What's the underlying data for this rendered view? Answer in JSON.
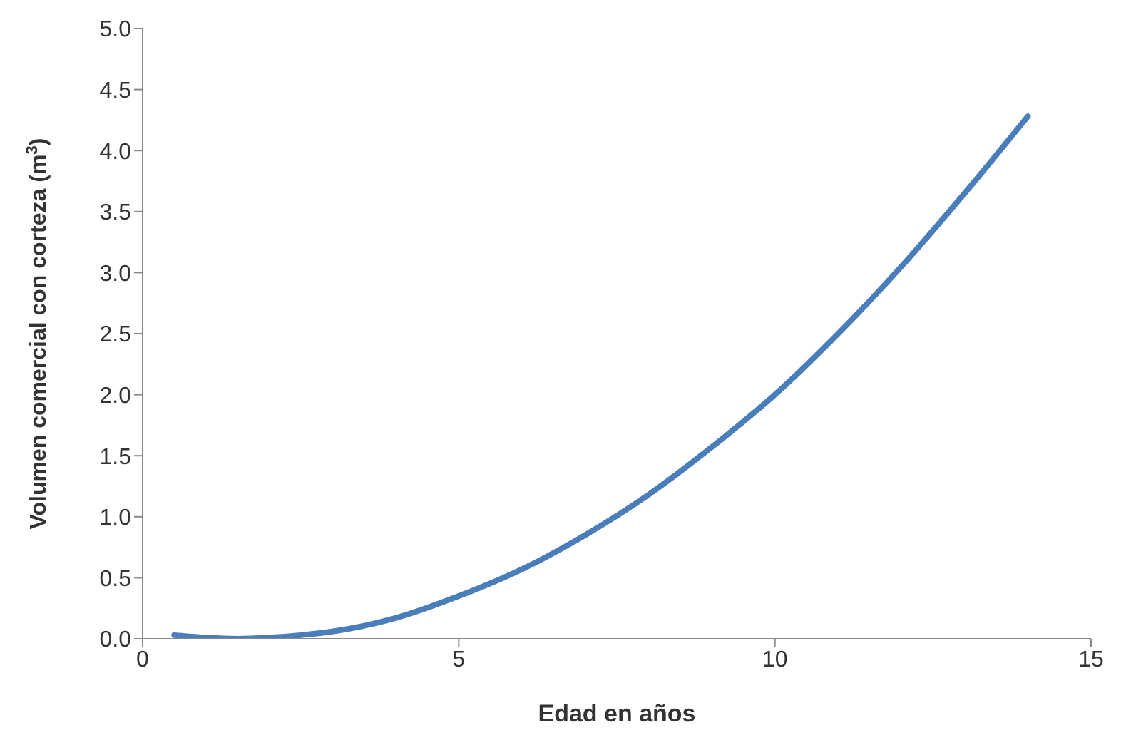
{
  "chart_data": {
    "type": "line",
    "xlabel": "Edad en años",
    "ylabel": "Volumen comercial con corteza (m$^{3}$)",
    "x": [
      0.5,
      1,
      1.5,
      2,
      2.5,
      3,
      4,
      5,
      6,
      7,
      8,
      9,
      10,
      11,
      12,
      13,
      14
    ],
    "series": [
      {
        "color": "#4a7ebb",
        "values": [
          0.03,
          0.01,
          0,
          0.01,
          0.03,
          0.06,
          0.17,
          0.35,
          0.57,
          0.85,
          1.18,
          1.57,
          2.0,
          2.5,
          3.05,
          3.65,
          4.28
        ]
      }
    ],
    "xlim": [
      0,
      15
    ],
    "xticks": [
      0,
      5,
      10,
      15
    ],
    "ylim": [
      0,
      5
    ],
    "yticks": [
      {
        "value": 0,
        "label": "0.0"
      },
      {
        "value": 0.5,
        "label": "0.5"
      },
      {
        "value": 1,
        "label": "1.0"
      },
      {
        "value": 1.5,
        "label": "1.5"
      },
      {
        "value": 2,
        "label": "2.0"
      },
      {
        "value": 2.5,
        "label": "2.5"
      },
      {
        "value": 3,
        "label": "3.0"
      },
      {
        "value": 3.5,
        "label": "3.5"
      },
      {
        "value": 4,
        "label": "4.0"
      },
      {
        "value": 4.5,
        "label": "4.5"
      },
      {
        "value": 5,
        "label": "5.0"
      }
    ],
    "grid": false,
    "legend": false,
    "marker": "none",
    "line_style": "solid"
  }
}
